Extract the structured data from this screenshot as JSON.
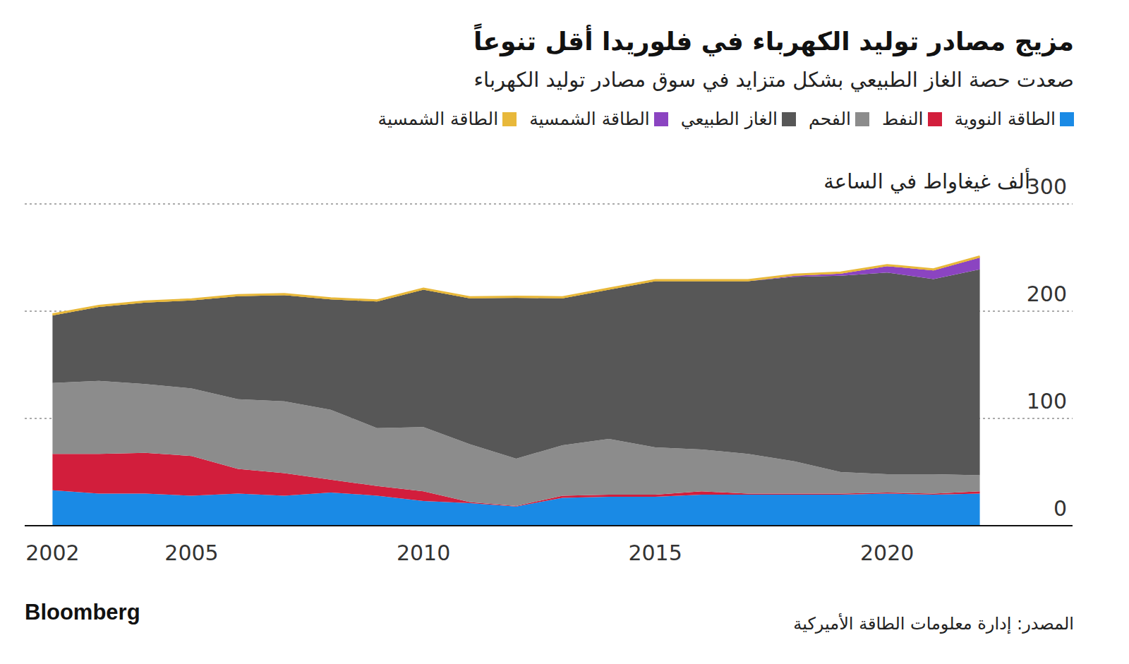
{
  "chart_data": {
    "type": "area",
    "title": "مزيج مصادر توليد الكهرباء في فلوريدا أقل تنوعاً",
    "subtitle": "صعدت حصة الغاز الطبيعي بشكل متزايد في سوق مصادر توليد الكهرباء",
    "y_label": "ألف غيغاواط في الساعة",
    "source": "المصدر: إدارة معلومات الطاقة الأميركية",
    "credit": "Bloomberg",
    "x": [
      2002,
      2003,
      2004,
      2005,
      2006,
      2007,
      2008,
      2009,
      2010,
      2011,
      2012,
      2013,
      2014,
      2015,
      2016,
      2017,
      2018,
      2019,
      2020,
      2021,
      2022
    ],
    "series": [
      {
        "name": "الطاقة النووية",
        "color": "#1a8ae5",
        "values": [
          33,
          30,
          30,
          28,
          30,
          28,
          31,
          28,
          23,
          21,
          18,
          26,
          27,
          27,
          29,
          29,
          29,
          29,
          30,
          29,
          30
        ]
      },
      {
        "name": "النفط",
        "color": "#d21e3c",
        "values": [
          34,
          37,
          38,
          37,
          23,
          21,
          12,
          9,
          9,
          1,
          0.5,
          2,
          2,
          2,
          3,
          1,
          1,
          1,
          1,
          1,
          2
        ]
      },
      {
        "name": "الفحم",
        "color": "#8c8c8c",
        "values": [
          66,
          68,
          64,
          63,
          65,
          67,
          65,
          54,
          60,
          54,
          44,
          47,
          52,
          44,
          39,
          37,
          30,
          20,
          17,
          18,
          15
        ]
      },
      {
        "name": "الغاز الطبيعي",
        "color": "#575757",
        "values": [
          63,
          69,
          76,
          82,
          96,
          99,
          103,
          118,
          128,
          136,
          150,
          137,
          139,
          155,
          157,
          161,
          172,
          183,
          188,
          182,
          192
        ]
      },
      {
        "name": "الطاقة الشمسية",
        "color": "#8b44c1",
        "values": [
          0,
          0,
          0,
          0,
          0,
          0,
          0,
          0,
          0,
          0,
          0,
          0,
          0,
          0,
          0,
          0,
          1,
          2,
          6,
          8,
          11
        ]
      },
      {
        "name": "الطاقة الشمسية",
        "color": "#e8b83a",
        "values": [
          1,
          1,
          1,
          1,
          1,
          1,
          1,
          1,
          1,
          1,
          1,
          1,
          1,
          1,
          1,
          1,
          1,
          1,
          1,
          1,
          1
        ]
      }
    ],
    "xlim": [
      2001.4,
      2024
    ],
    "xticks": [
      2002,
      2005,
      2010,
      2015,
      2020
    ],
    "ylim": [
      0,
      300
    ],
    "yticks": [
      0,
      100,
      200,
      300
    ],
    "stacked": true,
    "grid": true,
    "legend": "top-right"
  }
}
